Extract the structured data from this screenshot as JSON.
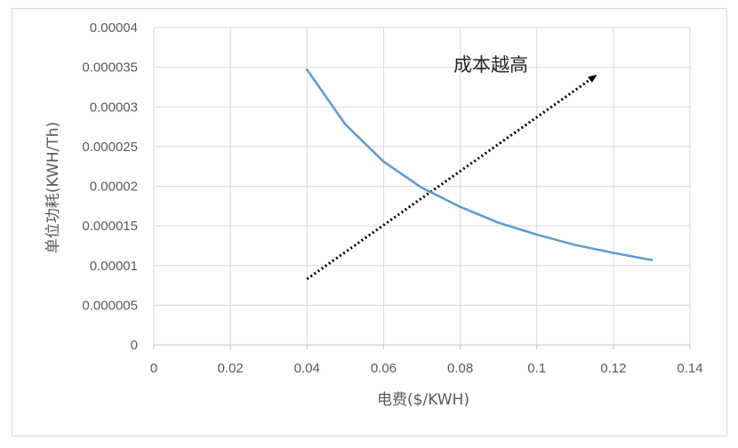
{
  "chart_data": {
    "type": "line",
    "title": "",
    "xlabel": "电费($/KWH)",
    "ylabel": "单位功耗(KWH/Th)",
    "xlim": [
      0,
      0.14
    ],
    "ylim": [
      0,
      4e-05
    ],
    "xticks": [
      "0",
      "0.02",
      "0.04",
      "0.06",
      "0.08",
      "0.1",
      "0.12",
      "0.14"
    ],
    "yticks": [
      "0",
      "0.000005",
      "0.00001",
      "0.000015",
      "0.00002",
      "0.000025",
      "0.00003",
      "0.000035",
      "0.00004"
    ],
    "grid": true,
    "series": [
      {
        "color": "#5b9bd5",
        "x": [
          0.04,
          0.05,
          0.06,
          0.07,
          0.08,
          0.09,
          0.1,
          0.11,
          0.12,
          0.13
        ],
        "y": [
          3.47e-05,
          2.78e-05,
          2.31e-05,
          1.98e-05,
          1.74e-05,
          1.54e-05,
          1.39e-05,
          1.26e-05,
          1.16e-05,
          1.07e-05
        ]
      }
    ],
    "annotation": {
      "text": "成本越高",
      "arrow_from": [
        0.04,
        8.3e-06
      ],
      "arrow_to": [
        0.115,
        3.38e-05
      ],
      "arrow_style": "dotted",
      "arrow_color": "#000000"
    }
  }
}
